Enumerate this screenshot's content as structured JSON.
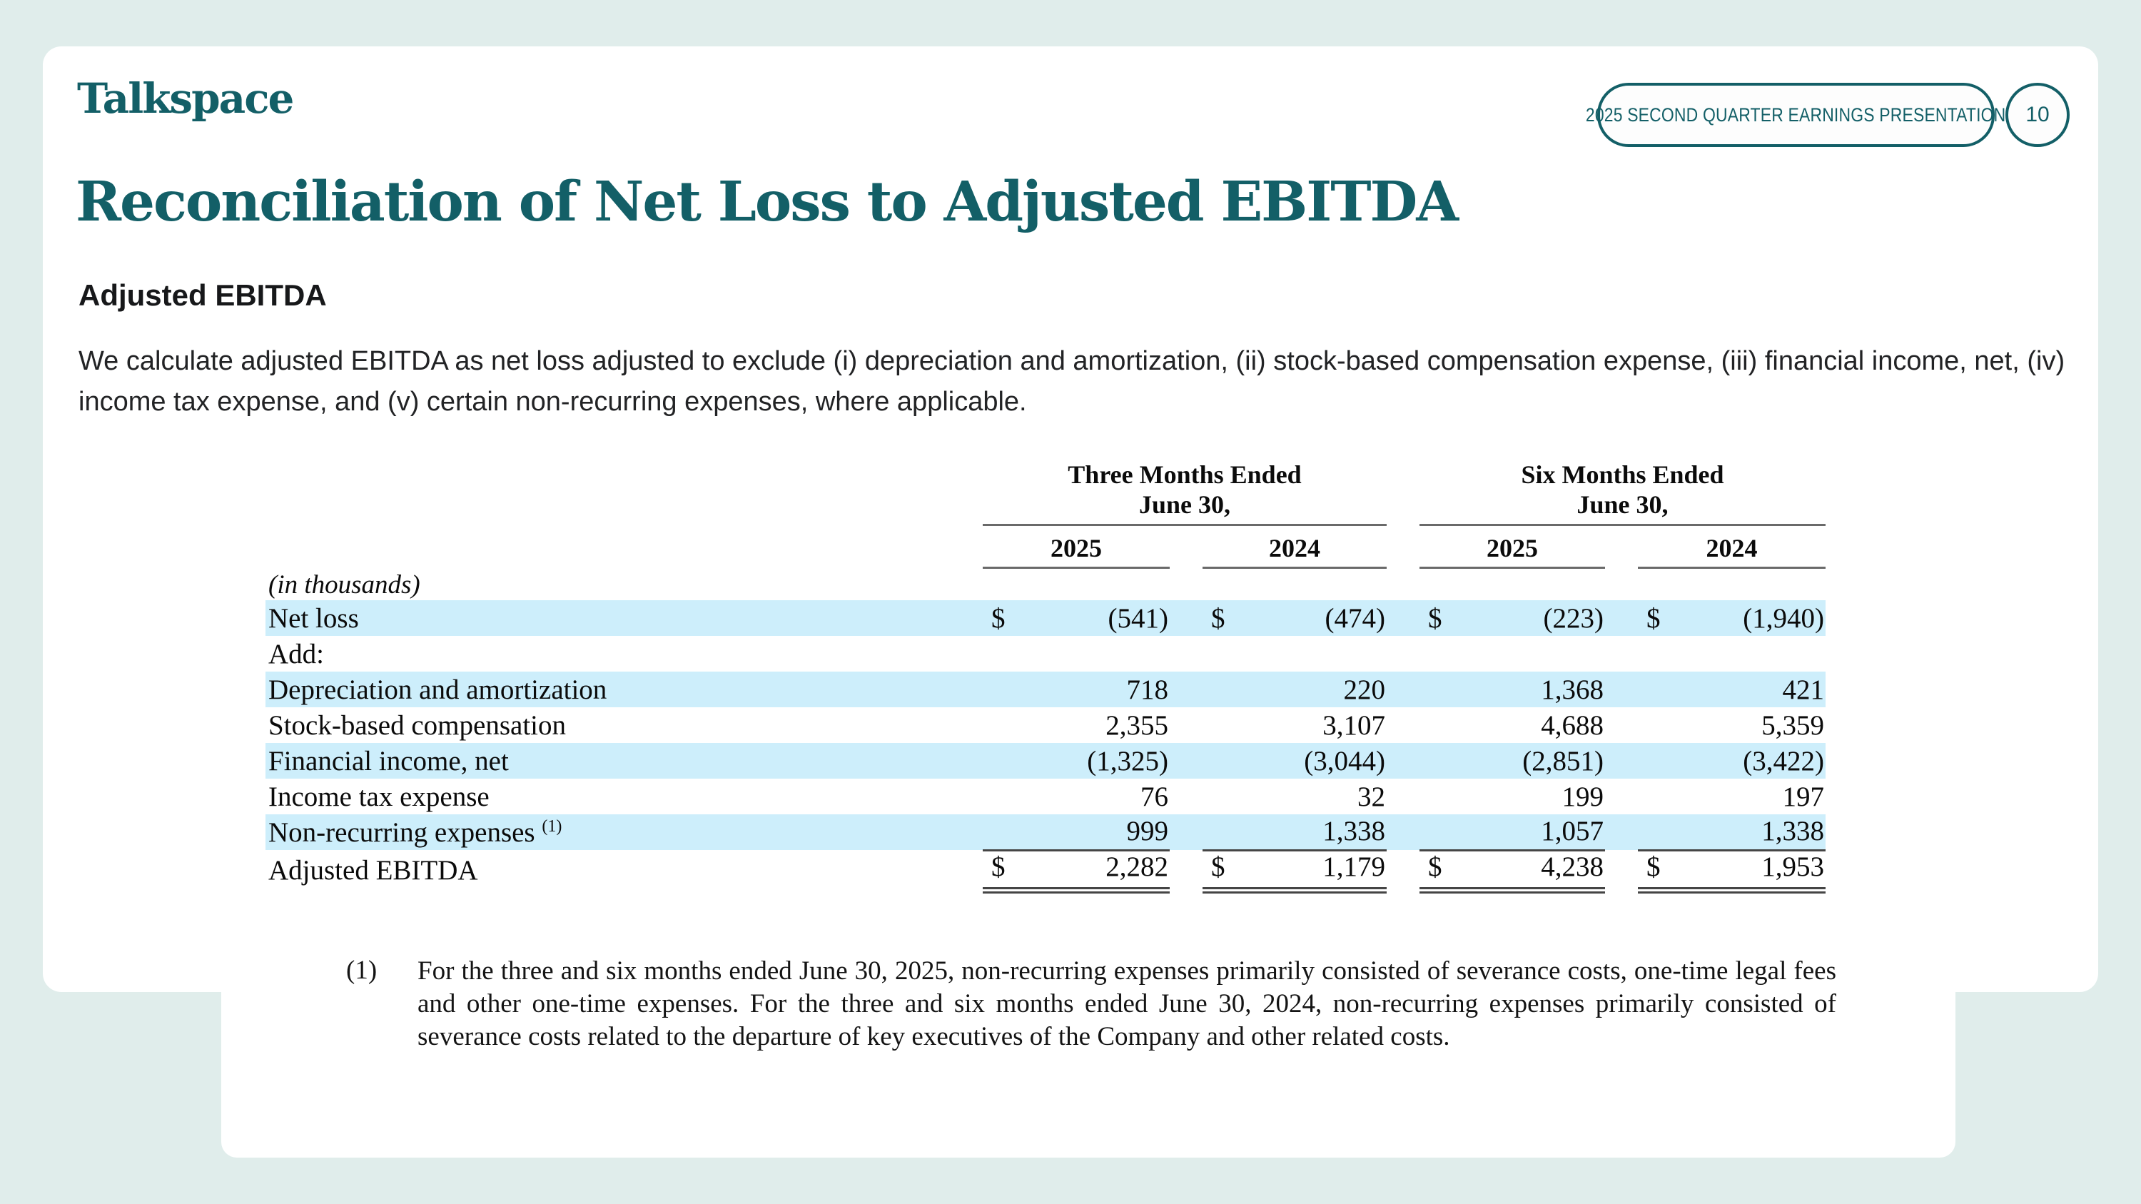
{
  "brand": {
    "logo": "Talkspace"
  },
  "topbar": {
    "badge_label": "2025 SECOND QUARTER EARNINGS PRESENTATION",
    "page_number": "10"
  },
  "slide": {
    "title": "Reconciliation of Net Loss to Adjusted EBITDA",
    "section_heading": "Adjusted EBITDA",
    "intro_paragraph": "We calculate adjusted EBITDA as net loss adjusted to exclude (i) depreciation and amortization, (ii) stock-based compensation expense, (iii) financial income, net, (iv) income tax expense, and (v) certain non-recurring expenses, where applicable."
  },
  "table": {
    "currency": "$",
    "units_note": "(in thousands)",
    "groups": [
      {
        "line1": "Three Months Ended",
        "line2": "June 30,",
        "years": [
          "2025",
          "2024"
        ]
      },
      {
        "line1": "Six Months Ended",
        "line2": "June 30,",
        "years": [
          "2025",
          "2024"
        ]
      }
    ],
    "rows": [
      {
        "label": "Net loss",
        "values": [
          "(541)",
          "(474)",
          "(223)",
          "(1,940)"
        ]
      },
      {
        "label": "Add:",
        "values": []
      },
      {
        "label": "Depreciation and amortization",
        "values": [
          "718",
          "220",
          "1,368",
          "421"
        ]
      },
      {
        "label": "Stock-based compensation",
        "values": [
          "2,355",
          "3,107",
          "4,688",
          "5,359"
        ]
      },
      {
        "label": "Financial income, net",
        "values": [
          "(1,325)",
          "(3,044)",
          "(2,851)",
          "(3,422)"
        ]
      },
      {
        "label": "Income tax expense",
        "values": [
          "76",
          "32",
          "199",
          "197"
        ]
      },
      {
        "label": "Non-recurring expenses",
        "footnote_ref": "(1)",
        "values": [
          "999",
          "1,338",
          "1,057",
          "1,338"
        ]
      },
      {
        "label": "Adjusted EBITDA",
        "values": [
          "2,282",
          "1,179",
          "4,238",
          "1,953"
        ]
      }
    ]
  },
  "footnote": {
    "marker": "(1)",
    "text": "For the three and six months ended June 30, 2025, non-recurring expenses primarily consisted of severance costs, one-time legal fees and other one-time expenses. For the three and six months ended June 30, 2024, non-recurring expenses primarily consisted of severance costs related to the departure of key executives of the Company and other related costs."
  },
  "colors": {
    "teal": "#135f67",
    "highlight_blue": "#cdeefb",
    "background_mint": "#e0edeb"
  }
}
